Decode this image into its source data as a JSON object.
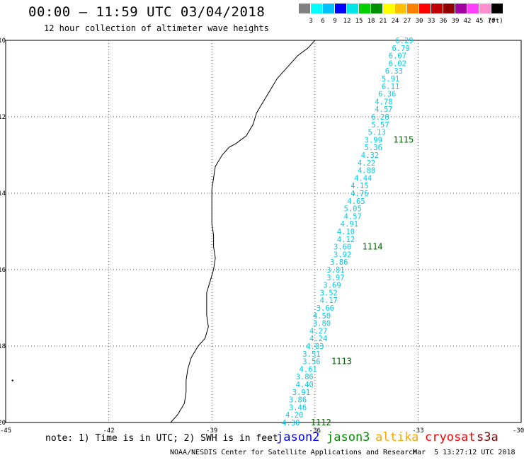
{
  "header": {
    "title": "00:00 — 11:59 UTC 03/04/2018",
    "subtitle": "12 hour collection of altimeter wave heights"
  },
  "legend": {
    "colors": [
      "#808080",
      "#00ffff",
      "#00bfff",
      "#0000ff",
      "#00e5e5",
      "#00d000",
      "#009000",
      "#ffff00",
      "#ffc000",
      "#ff8000",
      "#ff0000",
      "#c00000",
      "#900000",
      "#a000a0",
      "#ff40ff",
      "#ff90d0",
      "#000000"
    ],
    "labels": [
      "3",
      "6",
      "9",
      "12",
      "15",
      "18",
      "21",
      "24",
      "27",
      "30",
      "33",
      "36",
      "39",
      "42",
      "45",
      "70"
    ],
    "unit": "(ft)"
  },
  "map": {
    "lat_labels": [
      "-10",
      "-12",
      "-14",
      "-16",
      "-18",
      "-20"
    ],
    "lon_labels": [
      "-45",
      "-42",
      "-39",
      "-36",
      "-33",
      "-30"
    ],
    "lat_values": [
      -10,
      -12,
      -14,
      -16,
      -18,
      -20
    ],
    "lon_values": [
      -45,
      -42,
      -39,
      -36,
      -33,
      -30
    ],
    "track_color": "#00cfe8",
    "time_color": "#006400",
    "track": [
      {
        "lat": -10.0,
        "lon": -33.4,
        "swh": "6.29"
      },
      {
        "lat": -10.2,
        "lon": -33.5,
        "swh": "6.79"
      },
      {
        "lat": -10.4,
        "lon": -33.6,
        "swh": "6.07"
      },
      {
        "lat": -10.6,
        "lon": -33.6,
        "swh": "6.02"
      },
      {
        "lat": -10.8,
        "lon": -33.7,
        "swh": "6.33"
      },
      {
        "lat": -11.0,
        "lon": -33.8,
        "swh": "5.91"
      },
      {
        "lat": -11.2,
        "lon": -33.8,
        "swh": "6.11"
      },
      {
        "lat": -11.4,
        "lon": -33.9,
        "swh": "6.36"
      },
      {
        "lat": -11.6,
        "lon": -34.0,
        "swh": "4.78"
      },
      {
        "lat": -11.8,
        "lon": -34.0,
        "swh": "4.57"
      },
      {
        "lat": -12.0,
        "lon": -34.1,
        "swh": "6.28"
      },
      {
        "lat": -12.2,
        "lon": -34.1,
        "swh": "5.57"
      },
      {
        "lat": -12.4,
        "lon": -34.2,
        "swh": "5.13"
      },
      {
        "lat": -12.6,
        "lon": -34.3,
        "swh": "3.99"
      },
      {
        "lat": -12.8,
        "lon": -34.3,
        "swh": "5.36"
      },
      {
        "lat": -13.0,
        "lon": -34.4,
        "swh": "4.32"
      },
      {
        "lat": -13.2,
        "lon": -34.5,
        "swh": "4.22"
      },
      {
        "lat": -13.4,
        "lon": -34.5,
        "swh": "4.88"
      },
      {
        "lat": -13.6,
        "lon": -34.6,
        "swh": "4.44"
      },
      {
        "lat": -13.8,
        "lon": -34.7,
        "swh": "4.15"
      },
      {
        "lat": -14.0,
        "lon": -34.7,
        "swh": "4.76"
      },
      {
        "lat": -14.2,
        "lon": -34.8,
        "swh": "4.65"
      },
      {
        "lat": -14.4,
        "lon": -34.9,
        "swh": "5.05"
      },
      {
        "lat": -14.6,
        "lon": -34.9,
        "swh": "4.57"
      },
      {
        "lat": -14.8,
        "lon": -35.0,
        "swh": "4.91"
      },
      {
        "lat": -15.0,
        "lon": -35.1,
        "swh": "4.10"
      },
      {
        "lat": -15.2,
        "lon": -35.1,
        "swh": "4.12"
      },
      {
        "lat": -15.4,
        "lon": -35.2,
        "swh": "3.60"
      },
      {
        "lat": -15.6,
        "lon": -35.2,
        "swh": "3.92"
      },
      {
        "lat": -15.8,
        "lon": -35.3,
        "swh": "3.86"
      },
      {
        "lat": -16.0,
        "lon": -35.4,
        "swh": "3.81"
      },
      {
        "lat": -16.2,
        "lon": -35.4,
        "swh": "3.97"
      },
      {
        "lat": -16.4,
        "lon": -35.5,
        "swh": "3.69"
      },
      {
        "lat": -16.6,
        "lon": -35.6,
        "swh": "3.52"
      },
      {
        "lat": -16.8,
        "lon": -35.6,
        "swh": "4.17"
      },
      {
        "lat": -17.0,
        "lon": -35.7,
        "swh": "3.66"
      },
      {
        "lat": -17.2,
        "lon": -35.8,
        "swh": "4.50"
      },
      {
        "lat": -17.4,
        "lon": -35.8,
        "swh": "3.80"
      },
      {
        "lat": -17.6,
        "lon": -35.9,
        "swh": "4.27"
      },
      {
        "lat": -17.8,
        "lon": -35.9,
        "swh": "4.24"
      },
      {
        "lat": -18.0,
        "lon": -36.0,
        "swh": "4.03"
      },
      {
        "lat": -18.2,
        "lon": -36.1,
        "swh": "3.51"
      },
      {
        "lat": -18.4,
        "lon": -36.1,
        "swh": "3.56"
      },
      {
        "lat": -18.6,
        "lon": -36.2,
        "swh": "4.61"
      },
      {
        "lat": -18.8,
        "lon": -36.3,
        "swh": "3.86"
      },
      {
        "lat": -19.0,
        "lon": -36.3,
        "swh": "4.40"
      },
      {
        "lat": -19.2,
        "lon": -36.4,
        "swh": "3.91"
      },
      {
        "lat": -19.4,
        "lon": -36.5,
        "swh": "3.86"
      },
      {
        "lat": -19.6,
        "lon": -36.5,
        "swh": "3.46"
      },
      {
        "lat": -19.8,
        "lon": -36.6,
        "swh": "4.20"
      },
      {
        "lat": -20.0,
        "lon": -36.7,
        "swh": "4.30"
      }
    ],
    "time_labels": [
      {
        "lat": -12.6,
        "lon": -34.3,
        "text": "1115"
      },
      {
        "lat": -15.4,
        "lon": -35.2,
        "text": "1114"
      },
      {
        "lat": -18.4,
        "lon": -36.1,
        "text": "1113"
      },
      {
        "lat": -20.0,
        "lon": -36.7,
        "text": "1112"
      }
    ],
    "coastline": [
      [
        -36.0,
        -10.0
      ],
      [
        -36.2,
        -10.2
      ],
      [
        -36.5,
        -10.4
      ],
      [
        -36.7,
        -10.6
      ],
      [
        -36.9,
        -10.8
      ],
      [
        -37.1,
        -11.0
      ],
      [
        -37.3,
        -11.3
      ],
      [
        -37.5,
        -11.6
      ],
      [
        -37.7,
        -11.9
      ],
      [
        -37.8,
        -12.2
      ],
      [
        -38.0,
        -12.5
      ],
      [
        -38.3,
        -12.7
      ],
      [
        -38.5,
        -12.8
      ],
      [
        -38.7,
        -13.0
      ],
      [
        -38.9,
        -13.3
      ],
      [
        -38.95,
        -13.6
      ],
      [
        -39.0,
        -13.9
      ],
      [
        -39.0,
        -14.2
      ],
      [
        -39.0,
        -14.5
      ],
      [
        -39.0,
        -14.8
      ],
      [
        -38.95,
        -15.1
      ],
      [
        -38.95,
        -15.4
      ],
      [
        -38.9,
        -15.7
      ],
      [
        -38.95,
        -16.0
      ],
      [
        -39.05,
        -16.3
      ],
      [
        -39.15,
        -16.6
      ],
      [
        -39.15,
        -16.9
      ],
      [
        -39.15,
        -17.2
      ],
      [
        -39.1,
        -17.5
      ],
      [
        -39.2,
        -17.8
      ],
      [
        -39.4,
        -18.0
      ],
      [
        -39.6,
        -18.3
      ],
      [
        -39.7,
        -18.6
      ],
      [
        -39.75,
        -18.9
      ],
      [
        -39.75,
        -19.2
      ],
      [
        -39.8,
        -19.5
      ],
      [
        -40.0,
        -19.8
      ],
      [
        -40.2,
        -20.0
      ]
    ]
  },
  "footer": {
    "note": "note: 1) Time is in UTC; 2) SWH is in feet",
    "satellites": [
      {
        "name": "jason2",
        "color": "#0000ff"
      },
      {
        "name": "jason3",
        "color": "#009000"
      },
      {
        "name": "altika",
        "color": "#ffa500"
      },
      {
        "name": "cryosat",
        "color": "#ff0000"
      },
      {
        "name": "s3a",
        "color": "#8b0000"
      }
    ],
    "credit": "NOAA/NESDIS Center for Satellite Applications and Research",
    "timestamp": "Mar  5 13:27:12 UTC 2018"
  }
}
